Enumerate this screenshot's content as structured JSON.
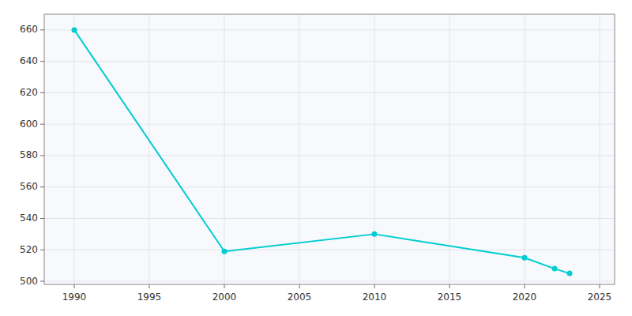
{
  "chart_data": {
    "type": "line",
    "x": [
      1990,
      2000,
      2010,
      2020,
      2022,
      2023
    ],
    "values": [
      660,
      519,
      530,
      515,
      508,
      505
    ],
    "color": "#00CDD1",
    "marker": "circle",
    "line_style": "solid",
    "xlim": [
      1988,
      2026
    ],
    "ylim": [
      498,
      670
    ],
    "xticks": [
      1990,
      1995,
      2000,
      2005,
      2010,
      2015,
      2020,
      2025
    ],
    "yticks": [
      500,
      520,
      540,
      560,
      580,
      600,
      620,
      640,
      660
    ],
    "grid": true
  }
}
